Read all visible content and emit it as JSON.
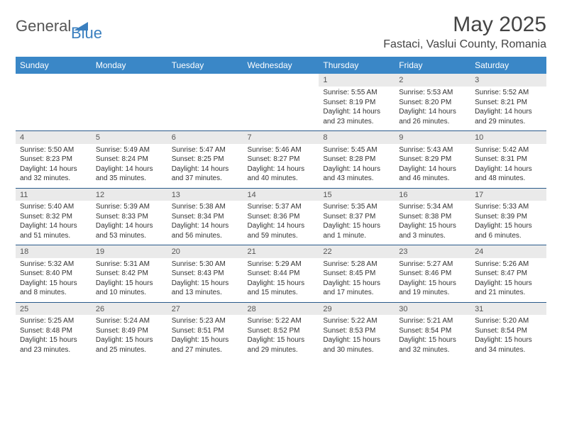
{
  "logo": {
    "general": "General",
    "blue": "Blue"
  },
  "title": "May 2025",
  "location": "Fastaci, Vaslui County, Romania",
  "colors": {
    "header_bg": "#3a87c7",
    "header_text": "#ffffff",
    "numrow_bg": "#eaeaea",
    "divider": "#2a5a8a",
    "logo_gray": "#555555",
    "logo_blue": "#3a7fbf"
  },
  "fonts": {
    "title_size": 30,
    "location_size": 16,
    "dow_size": 12,
    "daynum_size": 11,
    "body_size": 10
  },
  "days_of_week": [
    "Sunday",
    "Monday",
    "Tuesday",
    "Wednesday",
    "Thursday",
    "Friday",
    "Saturday"
  ],
  "weeks": [
    [
      null,
      null,
      null,
      null,
      {
        "n": "1",
        "sr": "5:55 AM",
        "ss": "8:19 PM",
        "dl": "14 hours and 23 minutes."
      },
      {
        "n": "2",
        "sr": "5:53 AM",
        "ss": "8:20 PM",
        "dl": "14 hours and 26 minutes."
      },
      {
        "n": "3",
        "sr": "5:52 AM",
        "ss": "8:21 PM",
        "dl": "14 hours and 29 minutes."
      }
    ],
    [
      {
        "n": "4",
        "sr": "5:50 AM",
        "ss": "8:23 PM",
        "dl": "14 hours and 32 minutes."
      },
      {
        "n": "5",
        "sr": "5:49 AM",
        "ss": "8:24 PM",
        "dl": "14 hours and 35 minutes."
      },
      {
        "n": "6",
        "sr": "5:47 AM",
        "ss": "8:25 PM",
        "dl": "14 hours and 37 minutes."
      },
      {
        "n": "7",
        "sr": "5:46 AM",
        "ss": "8:27 PM",
        "dl": "14 hours and 40 minutes."
      },
      {
        "n": "8",
        "sr": "5:45 AM",
        "ss": "8:28 PM",
        "dl": "14 hours and 43 minutes."
      },
      {
        "n": "9",
        "sr": "5:43 AM",
        "ss": "8:29 PM",
        "dl": "14 hours and 46 minutes."
      },
      {
        "n": "10",
        "sr": "5:42 AM",
        "ss": "8:31 PM",
        "dl": "14 hours and 48 minutes."
      }
    ],
    [
      {
        "n": "11",
        "sr": "5:40 AM",
        "ss": "8:32 PM",
        "dl": "14 hours and 51 minutes."
      },
      {
        "n": "12",
        "sr": "5:39 AM",
        "ss": "8:33 PM",
        "dl": "14 hours and 53 minutes."
      },
      {
        "n": "13",
        "sr": "5:38 AM",
        "ss": "8:34 PM",
        "dl": "14 hours and 56 minutes."
      },
      {
        "n": "14",
        "sr": "5:37 AM",
        "ss": "8:36 PM",
        "dl": "14 hours and 59 minutes."
      },
      {
        "n": "15",
        "sr": "5:35 AM",
        "ss": "8:37 PM",
        "dl": "15 hours and 1 minute."
      },
      {
        "n": "16",
        "sr": "5:34 AM",
        "ss": "8:38 PM",
        "dl": "15 hours and 3 minutes."
      },
      {
        "n": "17",
        "sr": "5:33 AM",
        "ss": "8:39 PM",
        "dl": "15 hours and 6 minutes."
      }
    ],
    [
      {
        "n": "18",
        "sr": "5:32 AM",
        "ss": "8:40 PM",
        "dl": "15 hours and 8 minutes."
      },
      {
        "n": "19",
        "sr": "5:31 AM",
        "ss": "8:42 PM",
        "dl": "15 hours and 10 minutes."
      },
      {
        "n": "20",
        "sr": "5:30 AM",
        "ss": "8:43 PM",
        "dl": "15 hours and 13 minutes."
      },
      {
        "n": "21",
        "sr": "5:29 AM",
        "ss": "8:44 PM",
        "dl": "15 hours and 15 minutes."
      },
      {
        "n": "22",
        "sr": "5:28 AM",
        "ss": "8:45 PM",
        "dl": "15 hours and 17 minutes."
      },
      {
        "n": "23",
        "sr": "5:27 AM",
        "ss": "8:46 PM",
        "dl": "15 hours and 19 minutes."
      },
      {
        "n": "24",
        "sr": "5:26 AM",
        "ss": "8:47 PM",
        "dl": "15 hours and 21 minutes."
      }
    ],
    [
      {
        "n": "25",
        "sr": "5:25 AM",
        "ss": "8:48 PM",
        "dl": "15 hours and 23 minutes."
      },
      {
        "n": "26",
        "sr": "5:24 AM",
        "ss": "8:49 PM",
        "dl": "15 hours and 25 minutes."
      },
      {
        "n": "27",
        "sr": "5:23 AM",
        "ss": "8:51 PM",
        "dl": "15 hours and 27 minutes."
      },
      {
        "n": "28",
        "sr": "5:22 AM",
        "ss": "8:52 PM",
        "dl": "15 hours and 29 minutes."
      },
      {
        "n": "29",
        "sr": "5:22 AM",
        "ss": "8:53 PM",
        "dl": "15 hours and 30 minutes."
      },
      {
        "n": "30",
        "sr": "5:21 AM",
        "ss": "8:54 PM",
        "dl": "15 hours and 32 minutes."
      },
      {
        "n": "31",
        "sr": "5:20 AM",
        "ss": "8:54 PM",
        "dl": "15 hours and 34 minutes."
      }
    ]
  ],
  "labels": {
    "sunrise": "Sunrise:",
    "sunset": "Sunset:",
    "daylight": "Daylight:"
  }
}
